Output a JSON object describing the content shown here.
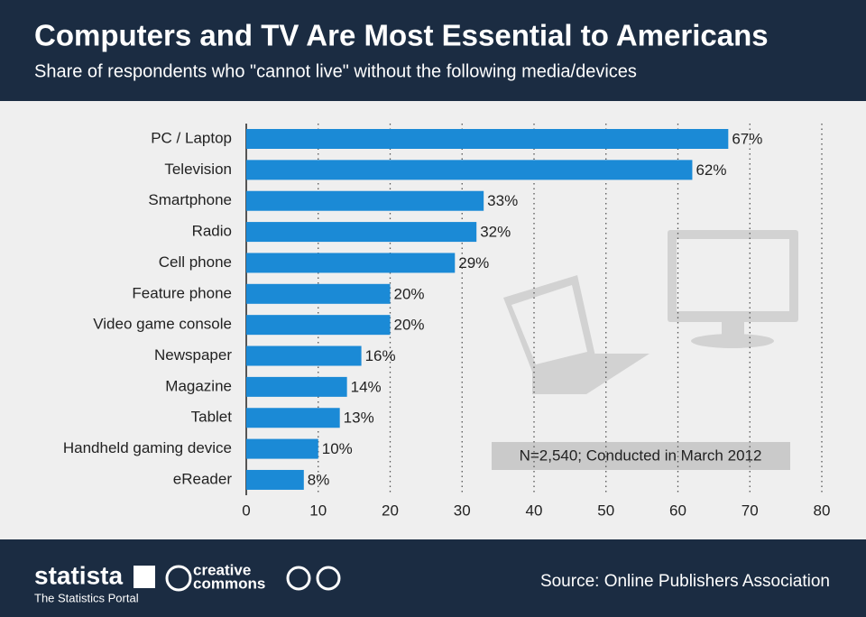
{
  "chart_data": {
    "type": "bar",
    "orientation": "horizontal",
    "title": "Computers and TV Are Most Essential to Americans",
    "subtitle": "Share of respondents who \"cannot live\" without the following media/devices",
    "categories": [
      "PC / Laptop",
      "Television",
      "Smartphone",
      "Radio",
      "Cell phone",
      "Feature phone",
      "Video game console",
      "Newspaper",
      "Magazine",
      "Tablet",
      "Handheld gaming device",
      "eReader"
    ],
    "values": [
      67,
      62,
      33,
      32,
      29,
      20,
      20,
      16,
      14,
      13,
      10,
      8
    ],
    "value_labels": [
      "67%",
      "62%",
      "33%",
      "32%",
      "29%",
      "20%",
      "20%",
      "16%",
      "14%",
      "13%",
      "10%",
      "8%"
    ],
    "color": "#1b8ad6",
    "xlim": [
      0,
      80
    ],
    "xticks": [
      0,
      10,
      20,
      30,
      40,
      50,
      60,
      70,
      80
    ],
    "grid": true,
    "annotation": "N=2,540; Conducted in March 2012"
  },
  "footer": {
    "brand": "statista",
    "tagline": "The Statistics Portal",
    "license_top": "creative",
    "license_bottom": "commons",
    "source": "Source: Online Publishers Association"
  }
}
